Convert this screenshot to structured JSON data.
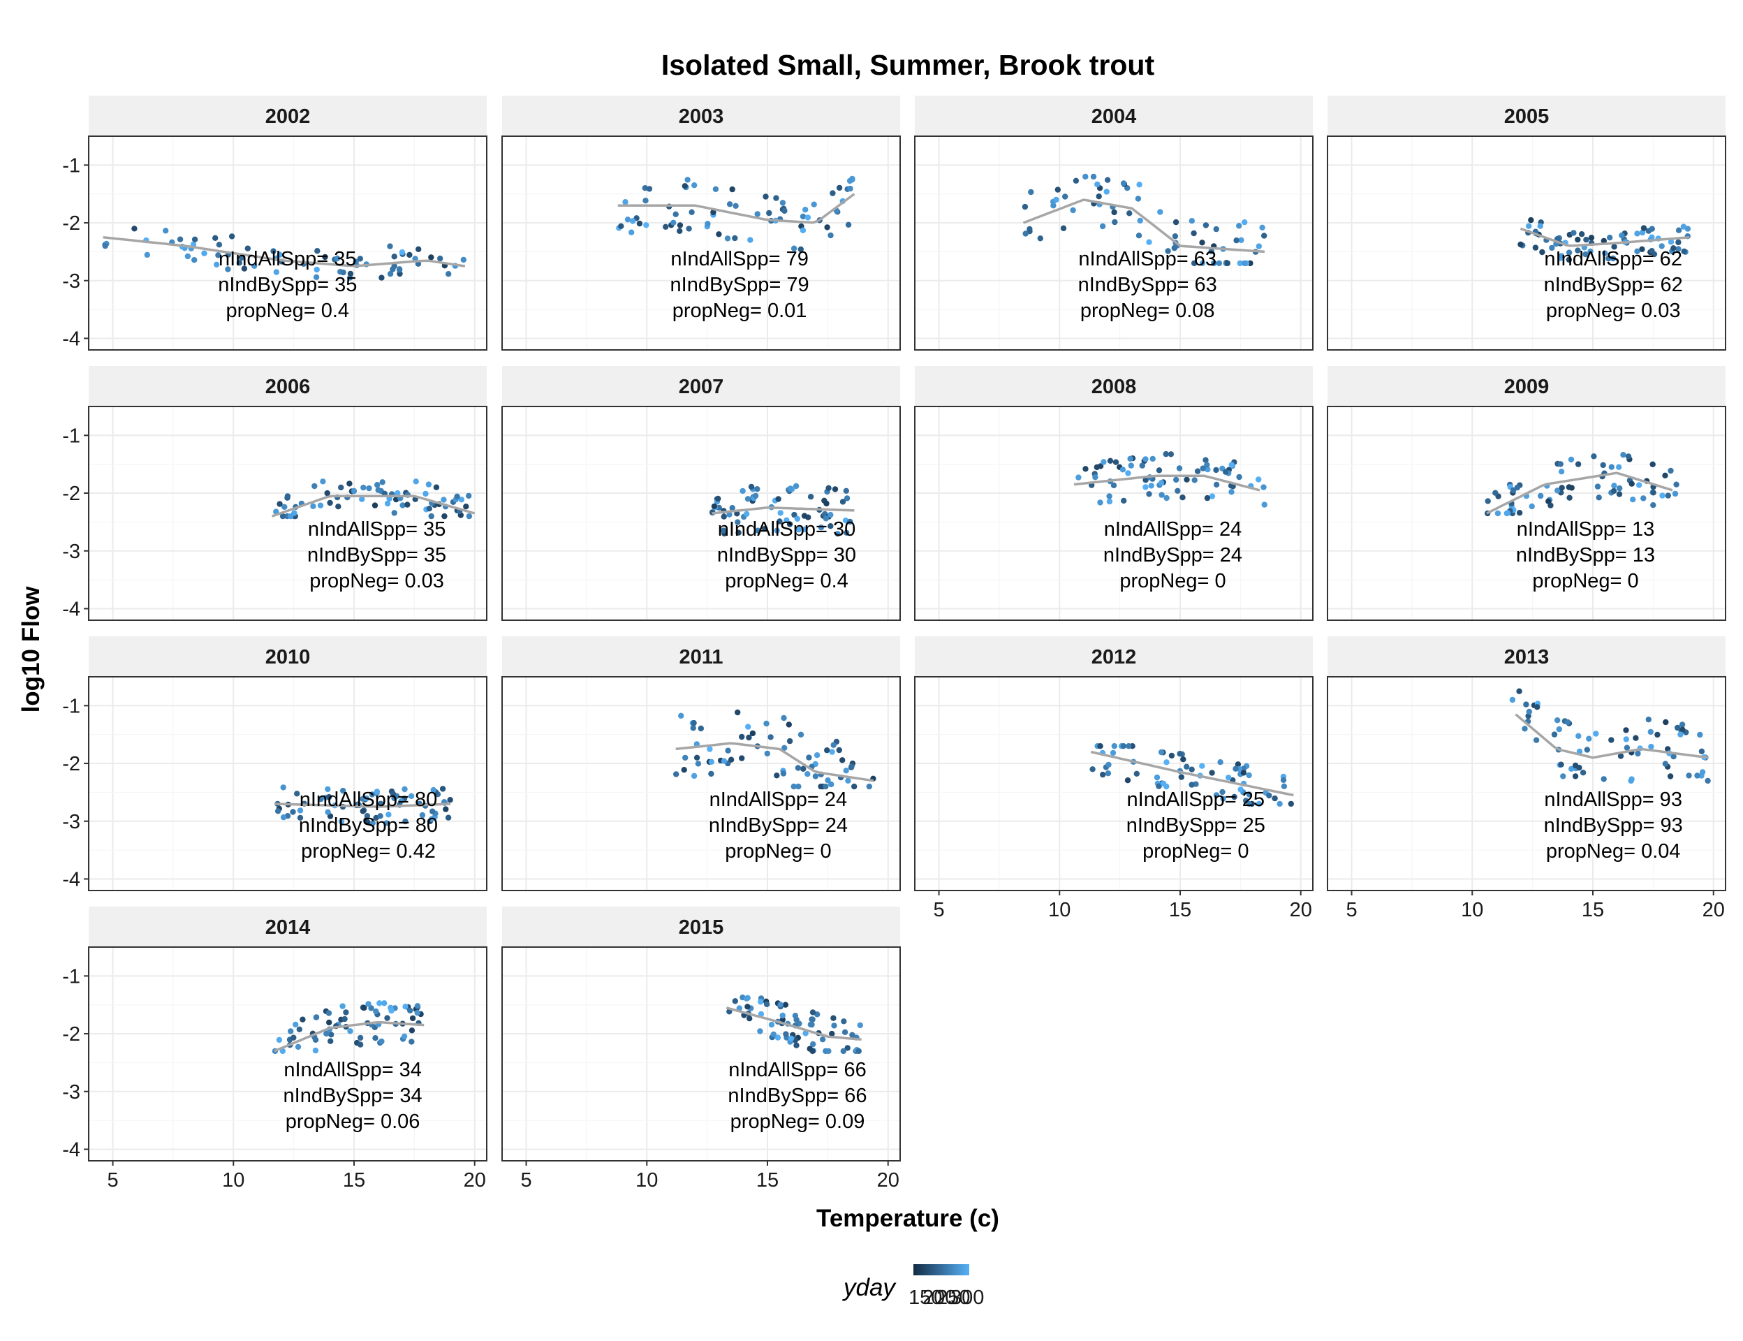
{
  "chart_data": {
    "type": "scatter",
    "title": "Isolated Small, Summer, Brook trout",
    "xlabel": "Temperature (c)",
    "ylabel": "log10 Flow",
    "xlim": [
      4,
      20.5
    ],
    "ylim": [
      -4.2,
      -0.5
    ],
    "x_ticks": [
      "5",
      "10",
      "15",
      "20"
    ],
    "y_ticks": [
      "-1",
      "-2",
      "-3",
      "-4"
    ],
    "grid": true,
    "smooth_color": "#a6a6a6",
    "color_scale": {
      "name": "yday",
      "low": "#132b43",
      "high": "#56b1f7",
      "labels": [
        "150",
        "200",
        "250",
        "300"
      ],
      "placement": "bottom"
    },
    "annotation_labels": {
      "all": "nIndAllSpp= ",
      "by": "nIndBySpp= ",
      "neg": "propNeg= "
    },
    "panels": [
      {
        "year": "2002",
        "nIndAllSpp": 35,
        "nIndBySpp": 35,
        "propNeg": "0.4",
        "xrange": [
          4.6,
          19.6
        ],
        "yrange": [
          -2.95,
          -2.1
        ],
        "smooth": [
          [
            4.6,
            -2.25
          ],
          [
            8,
            -2.4
          ],
          [
            12,
            -2.65
          ],
          [
            15,
            -2.75
          ],
          [
            18,
            -2.65
          ],
          [
            19.6,
            -2.75
          ]
        ]
      },
      {
        "year": "2003",
        "nIndAllSpp": 79,
        "nIndBySpp": 79,
        "propNeg": "0.01",
        "xrange": [
          8.8,
          18.6
        ],
        "yrange": [
          -2.5,
          -1.1
        ],
        "smooth": [
          [
            8.8,
            -1.7
          ],
          [
            12,
            -1.7
          ],
          [
            15,
            -1.95
          ],
          [
            17,
            -2.0
          ],
          [
            18.6,
            -1.5
          ]
        ]
      },
      {
        "year": "2004",
        "nIndAllSpp": 63,
        "nIndBySpp": 63,
        "propNeg": "0.08",
        "xrange": [
          8.5,
          18.5
        ],
        "yrange": [
          -2.7,
          -1.2
        ],
        "smooth": [
          [
            8.5,
            -2.0
          ],
          [
            11,
            -1.6
          ],
          [
            13,
            -1.75
          ],
          [
            15,
            -2.4
          ],
          [
            18.5,
            -2.5
          ]
        ]
      },
      {
        "year": "2005",
        "nIndAllSpp": 62,
        "nIndBySpp": 62,
        "propNeg": "0.03",
        "xrange": [
          12,
          19.4
        ],
        "yrange": [
          -2.7,
          -1.9
        ],
        "smooth": [
          [
            12,
            -2.1
          ],
          [
            14,
            -2.4
          ],
          [
            16,
            -2.35
          ],
          [
            19,
            -2.25
          ]
        ]
      },
      {
        "year": "2006",
        "nIndAllSpp": 35,
        "nIndBySpp": 35,
        "propNeg": "0.03",
        "xrange": [
          11.6,
          20
        ],
        "yrange": [
          -2.4,
          -1.55
        ],
        "smooth": [
          [
            11.6,
            -2.4
          ],
          [
            14,
            -2.05
          ],
          [
            17.5,
            -2.05
          ],
          [
            20,
            -2.35
          ]
        ]
      },
      {
        "year": "2007",
        "nIndAllSpp": 30,
        "nIndBySpp": 30,
        "propNeg": "0.4",
        "xrange": [
          12.7,
          18.6
        ],
        "yrange": [
          -2.8,
          -1.6
        ],
        "smooth": [
          [
            12.7,
            -2.35
          ],
          [
            15,
            -2.25
          ],
          [
            18.6,
            -2.3
          ]
        ]
      },
      {
        "year": "2008",
        "nIndAllSpp": 24,
        "nIndBySpp": 24,
        "propNeg": "0",
        "xrange": [
          10.6,
          18.5
        ],
        "yrange": [
          -2.2,
          -1.1
        ],
        "smooth": [
          [
            10.6,
            -1.85
          ],
          [
            14,
            -1.7
          ],
          [
            16,
            -1.7
          ],
          [
            18.3,
            -1.95
          ]
        ]
      },
      {
        "year": "2009",
        "nIndAllSpp": 13,
        "nIndBySpp": 13,
        "propNeg": "0",
        "xrange": [
          10.6,
          18.5
        ],
        "yrange": [
          -2.35,
          -1.25
        ],
        "smooth": [
          [
            10.6,
            -2.35
          ],
          [
            13,
            -1.85
          ],
          [
            16,
            -1.65
          ],
          [
            18.3,
            -1.95
          ]
        ]
      },
      {
        "year": "2010",
        "nIndAllSpp": 80,
        "nIndBySpp": 80,
        "propNeg": "0.42",
        "xrange": [
          11.7,
          19.2
        ],
        "yrange": [
          -3.05,
          -2.2
        ],
        "smooth": [
          [
            11.7,
            -2.7
          ],
          [
            16,
            -2.75
          ],
          [
            19,
            -2.7
          ]
        ]
      },
      {
        "year": "2011",
        "nIndAllSpp": 24,
        "nIndBySpp": 24,
        "propNeg": "0",
        "xrange": [
          11.2,
          19.4
        ],
        "yrange": [
          -2.4,
          -0.7
        ],
        "smooth": [
          [
            11.2,
            -1.75
          ],
          [
            13.5,
            -1.65
          ],
          [
            15.5,
            -1.75
          ],
          [
            17,
            -2.15
          ],
          [
            19.4,
            -2.3
          ]
        ]
      },
      {
        "year": "2012",
        "nIndAllSpp": 25,
        "nIndBySpp": 25,
        "propNeg": "0",
        "xrange": [
          11.3,
          19.7
        ],
        "yrange": [
          -2.7,
          -1.7
        ],
        "smooth": [
          [
            11.3,
            -1.8
          ],
          [
            15,
            -2.15
          ],
          [
            19.7,
            -2.55
          ]
        ]
      },
      {
        "year": "2013",
        "nIndAllSpp": 93,
        "nIndBySpp": 93,
        "propNeg": "0.04",
        "xrange": [
          11.6,
          19.8
        ],
        "yrange": [
          -2.3,
          -0.75
        ],
        "smooth": [
          [
            11.8,
            -1.15
          ],
          [
            13.5,
            -1.75
          ],
          [
            15,
            -1.9
          ],
          [
            17,
            -1.75
          ],
          [
            19.8,
            -1.9
          ]
        ]
      },
      {
        "year": "2014",
        "nIndAllSpp": 34,
        "nIndBySpp": 34,
        "propNeg": "0.06",
        "xrange": [
          11.7,
          17.9
        ],
        "yrange": [
          -2.3,
          -1.25
        ],
        "smooth": [
          [
            11.7,
            -2.3
          ],
          [
            14,
            -1.9
          ],
          [
            16,
            -1.8
          ],
          [
            17.9,
            -1.85
          ]
        ]
      },
      {
        "year": "2015",
        "nIndAllSpp": 66,
        "nIndBySpp": 66,
        "propNeg": "0.09",
        "xrange": [
          13.3,
          18.9
        ],
        "yrange": [
          -2.3,
          -1.3
        ],
        "smooth": [
          [
            13.3,
            -1.55
          ],
          [
            15.5,
            -1.8
          ],
          [
            17.5,
            -2.05
          ],
          [
            18.9,
            -2.1
          ]
        ]
      }
    ]
  }
}
